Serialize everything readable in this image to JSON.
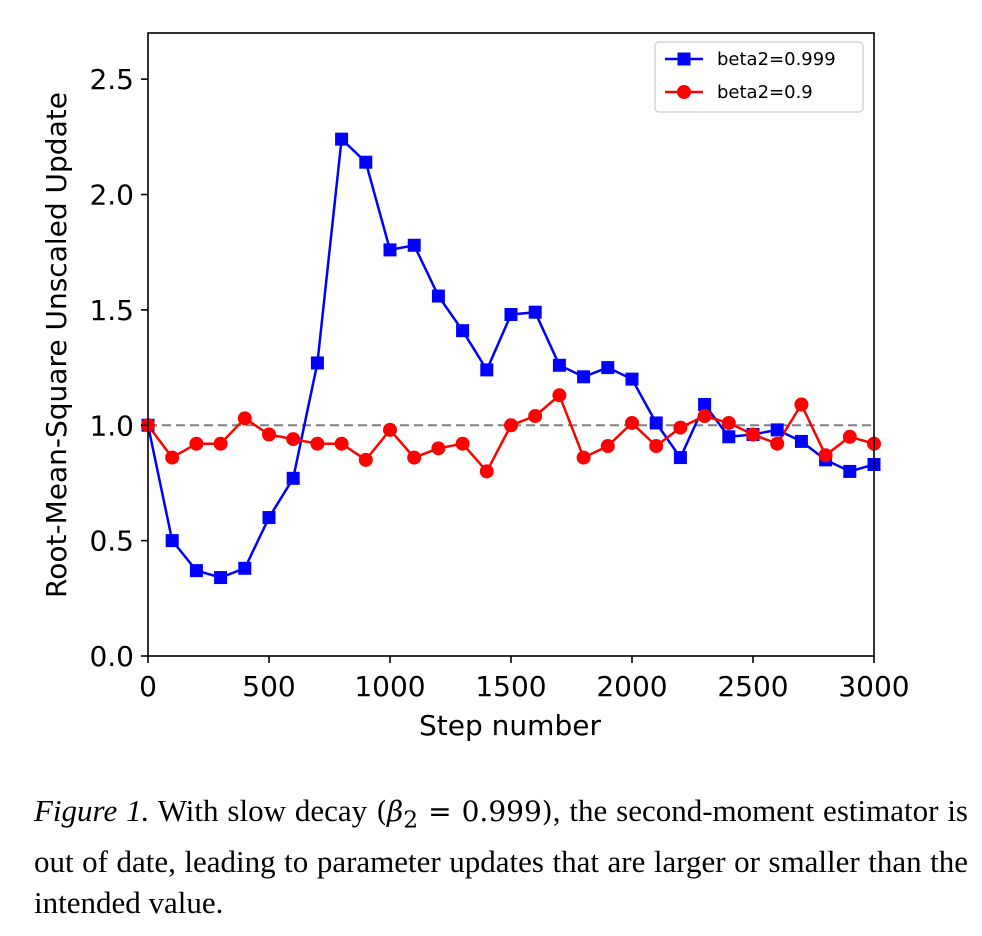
{
  "chart_data": {
    "type": "line",
    "xlabel": "Step number",
    "ylabel": "Root-Mean-Square Unscaled Update",
    "xlim": [
      0,
      3000
    ],
    "ylim": [
      0,
      2.7
    ],
    "x_ticks": [
      "0",
      "500",
      "1000",
      "1500",
      "2000",
      "2500",
      "3000"
    ],
    "y_ticks": [
      "0.0",
      "0.5",
      "1.0",
      "1.5",
      "2.0",
      "2.5"
    ],
    "grid": false,
    "legend_position": "top-right",
    "reference_line": {
      "y": 1.0,
      "style": "dashed",
      "color": "#808080"
    },
    "x": [
      0,
      100,
      200,
      300,
      400,
      500,
      600,
      700,
      800,
      900,
      1000,
      1100,
      1200,
      1300,
      1400,
      1500,
      1600,
      1700,
      1800,
      1900,
      2000,
      2100,
      2200,
      2300,
      2400,
      2500,
      2600,
      2700,
      2800,
      2900,
      3000
    ],
    "series": [
      {
        "name": "beta2=0.999",
        "color": "#0000ff",
        "marker": "square",
        "values": [
          1.0,
          0.5,
          0.37,
          0.34,
          0.38,
          0.6,
          0.77,
          1.27,
          2.24,
          2.14,
          1.76,
          1.78,
          1.56,
          1.41,
          1.24,
          1.48,
          1.49,
          1.26,
          1.21,
          1.25,
          1.2,
          1.01,
          0.86,
          1.09,
          0.95,
          0.96,
          0.98,
          0.93,
          0.85,
          0.8,
          0.83
        ]
      },
      {
        "name": "beta2=0.9",
        "color": "#ff0000",
        "marker": "circle",
        "values": [
          1.0,
          0.86,
          0.92,
          0.92,
          1.03,
          0.96,
          0.94,
          0.92,
          0.92,
          0.85,
          0.98,
          0.86,
          0.9,
          0.92,
          0.8,
          1.0,
          1.04,
          1.13,
          0.86,
          0.91,
          1.01,
          0.91,
          0.99,
          1.04,
          1.01,
          0.96,
          0.92,
          1.09,
          0.87,
          0.95,
          0.92
        ]
      }
    ]
  },
  "caption": {
    "lead": "Figure 1.",
    "text_before": " With slow decay ",
    "math_open": "(",
    "math_beta": "β",
    "math_sub": "2",
    "math_eq": " = 0.999)",
    "text_after": ", the second-moment estimator is out of date, leading to parameter updates that are larger or smaller than the intended value."
  }
}
